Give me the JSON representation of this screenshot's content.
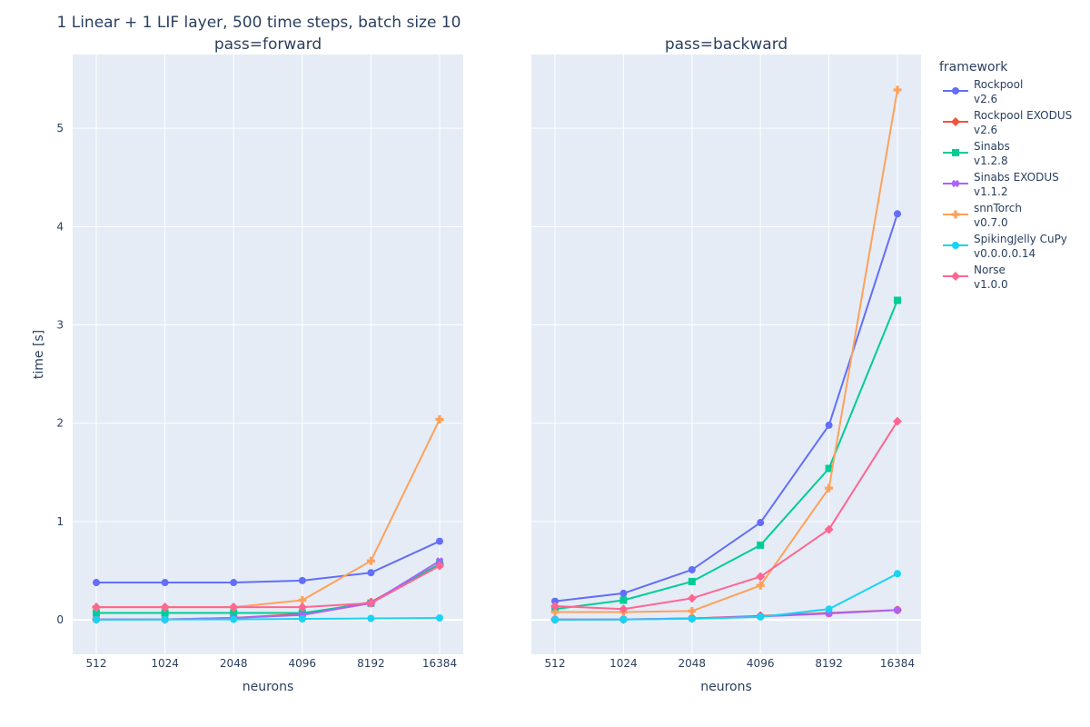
{
  "title": "1 Linear + 1 LIF layer, 500 time steps, batch size 10",
  "legend_title": "framework",
  "chart_data": [
    {
      "type": "line",
      "title": "pass=forward",
      "xlabel": "neurons",
      "ylabel": "time [s]",
      "categories": [
        "512",
        "1024",
        "2048",
        "4096",
        "8192",
        "16384"
      ],
      "ylim": [
        -0.35,
        5.75
      ],
      "yticks": [
        "0",
        "1",
        "2",
        "3",
        "4",
        "5"
      ],
      "grid": true,
      "series": [
        {
          "name": "Rockpool v2.6",
          "line1": "Rockpool",
          "line2": "v2.6",
          "color": "#636efa",
          "marker": "circle",
          "values": [
            0.38,
            0.38,
            0.38,
            0.4,
            0.48,
            0.8
          ]
        },
        {
          "name": "Rockpool EXODUS v2.6",
          "line1": "Rockpool EXODUS",
          "line2": "v2.6",
          "color": "#ef553b",
          "marker": "diamond",
          "values": [
            0.005,
            0.005,
            0.02,
            0.06,
            0.18,
            0.57
          ]
        },
        {
          "name": "Sinabs v1.2.8",
          "line1": "Sinabs",
          "line2": "v1.2.8",
          "color": "#00cc96",
          "marker": "square",
          "values": [
            0.07,
            0.07,
            0.07,
            0.07,
            0.17,
            0.57
          ]
        },
        {
          "name": "Sinabs EXODUS v1.1.2",
          "line1": "Sinabs EXODUS",
          "line2": "v1.1.2",
          "color": "#ab63fa",
          "marker": "x",
          "values": [
            0.005,
            0.005,
            0.02,
            0.05,
            0.17,
            0.6
          ]
        },
        {
          "name": "snnTorch v0.7.0",
          "line1": "snnTorch",
          "line2": "v0.7.0",
          "color": "#ffa15a",
          "marker": "cross",
          "values": [
            0.13,
            0.13,
            0.13,
            0.2,
            0.6,
            2.04
          ]
        },
        {
          "name": "SpikingJelly CuPy v0.0.0.0.14",
          "line1": "SpikingJelly CuPy",
          "line2": "v0.0.0.0.14",
          "color": "#19d3f3",
          "marker": "circle",
          "values": [
            0.002,
            0.003,
            0.005,
            0.01,
            0.015,
            0.02
          ]
        },
        {
          "name": "Norse v1.0.0",
          "line1": "Norse",
          "line2": "v1.0.0",
          "color": "#ff6692",
          "marker": "diamond",
          "values": [
            0.13,
            0.13,
            0.13,
            0.13,
            0.17,
            0.55
          ]
        }
      ]
    },
    {
      "type": "line",
      "title": "pass=backward",
      "xlabel": "neurons",
      "ylabel": "",
      "categories": [
        "512",
        "1024",
        "2048",
        "4096",
        "8192",
        "16384"
      ],
      "ylim": [
        -0.35,
        5.75
      ],
      "yticks": [
        "0",
        "1",
        "2",
        "3",
        "4",
        "5"
      ],
      "grid": true,
      "series": [
        {
          "name": "Rockpool v2.6",
          "values": [
            0.19,
            0.27,
            0.51,
            0.99,
            1.98,
            4.13
          ]
        },
        {
          "name": "Rockpool EXODUS v2.6",
          "values": [
            0.003,
            0.005,
            0.015,
            0.04,
            0.07,
            0.1
          ]
        },
        {
          "name": "Sinabs v1.2.8",
          "values": [
            0.11,
            0.2,
            0.39,
            0.76,
            1.54,
            3.25
          ]
        },
        {
          "name": "Sinabs EXODUS v1.1.2",
          "values": [
            0.003,
            0.005,
            0.015,
            0.035,
            0.065,
            0.1
          ]
        },
        {
          "name": "snnTorch v0.7.0",
          "values": [
            0.08,
            0.08,
            0.09,
            0.35,
            1.34,
            5.39
          ]
        },
        {
          "name": "SpikingJelly CuPy v0.0.0.0.14",
          "values": [
            0.002,
            0.003,
            0.01,
            0.03,
            0.11,
            0.47
          ]
        },
        {
          "name": "Norse v1.0.0",
          "values": [
            0.14,
            0.11,
            0.22,
            0.44,
            0.92,
            2.02
          ]
        }
      ]
    }
  ]
}
